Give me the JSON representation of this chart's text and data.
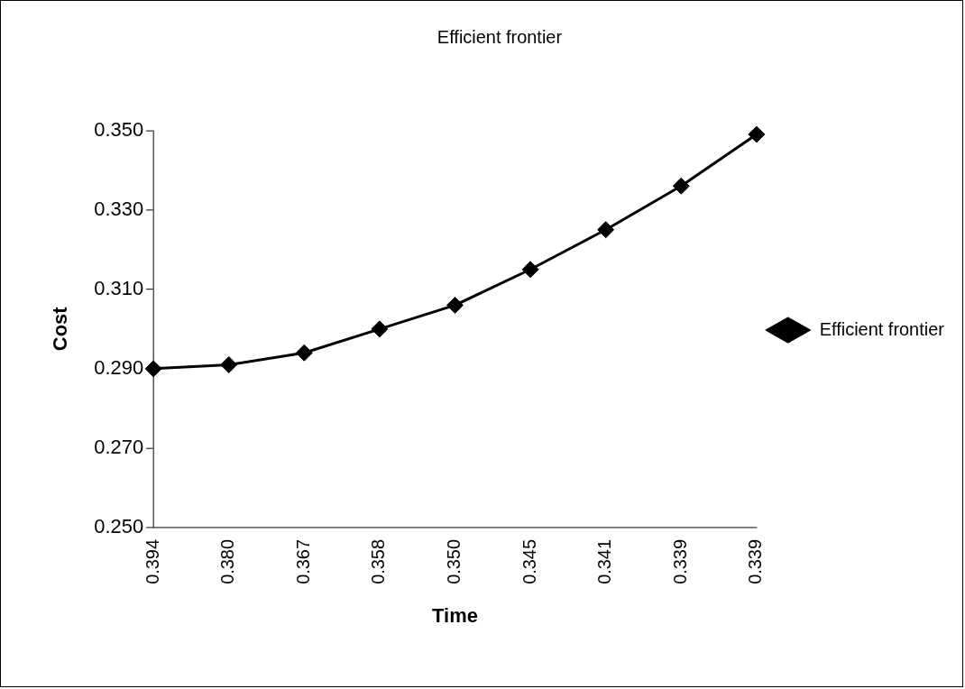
{
  "chart_data": {
    "type": "line",
    "title": "Efficient frontier",
    "xlabel": "Time",
    "ylabel": "Cost",
    "categories": [
      "0.394",
      "0.380",
      "0.367",
      "0.358",
      "0.350",
      "0.345",
      "0.341",
      "0.339",
      "0.339"
    ],
    "series": [
      {
        "name": "Efficient frontier",
        "color": "#000000",
        "values": [
          0.29,
          0.291,
          0.294,
          0.3,
          0.306,
          0.315,
          0.325,
          0.336,
          0.349
        ]
      }
    ],
    "ylim": [
      0.25,
      0.35
    ],
    "yticks": [
      {
        "value": 0.25,
        "label": "0.250"
      },
      {
        "value": 0.27,
        "label": "0.270"
      },
      {
        "value": 0.29,
        "label": "0.290"
      },
      {
        "value": 0.31,
        "label": "0.310"
      },
      {
        "value": 0.33,
        "label": "0.330"
      },
      {
        "value": 0.35,
        "label": "0.350"
      }
    ],
    "grid": false,
    "legend": "right",
    "marker": "diamond",
    "line_style": "solid"
  }
}
